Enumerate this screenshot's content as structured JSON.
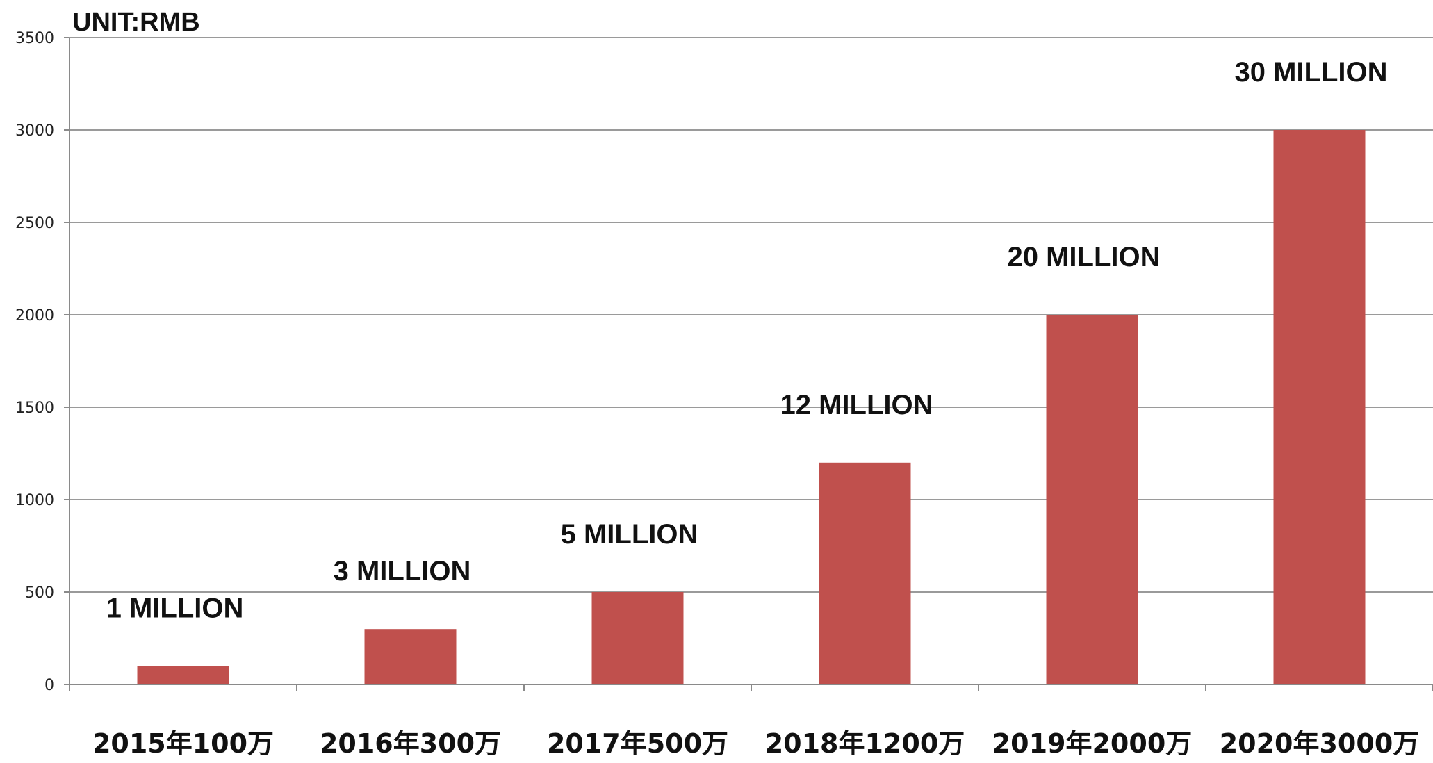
{
  "chart_data": {
    "type": "bar",
    "unit_label": "UNIT:RMB",
    "categories": [
      "2015年100万",
      "2016年300万",
      "2017年500万",
      "2018年1200万",
      "2019年2000万",
      "2020年3000万"
    ],
    "values": [
      100,
      300,
      500,
      1200,
      2000,
      3000
    ],
    "data_labels": [
      "1 MILLION",
      "3 MILLION",
      "5 MILLION",
      "12 MILLION",
      "20 MILLION",
      "30 MILLION"
    ],
    "ylim": [
      0,
      3500
    ],
    "yticks": [
      0,
      500,
      1000,
      1500,
      2000,
      2500,
      3000,
      3500
    ],
    "grid": true,
    "colors": {
      "bar": "#c0504d"
    }
  }
}
